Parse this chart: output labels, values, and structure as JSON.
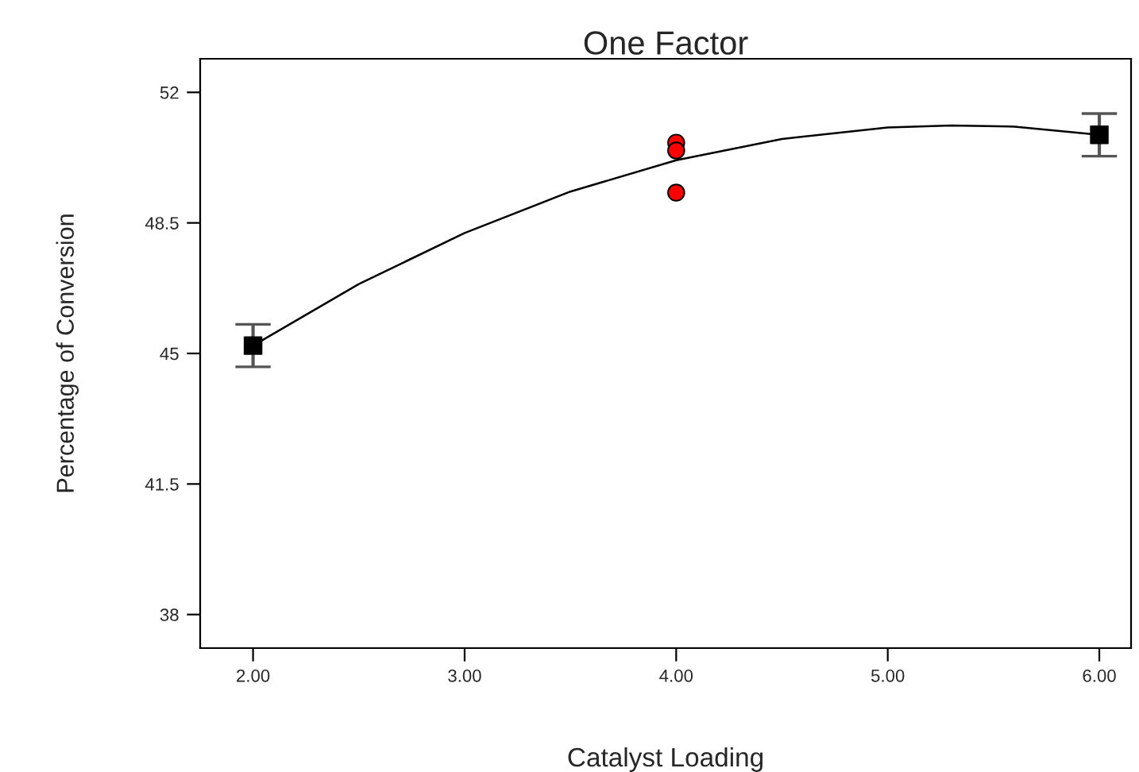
{
  "chart_data": {
    "type": "scatter",
    "title": "One Factor",
    "xlabel": "Catalyst Loading",
    "ylabel": "Percentage of Conversion",
    "xlim": [
      1.75,
      6.15
    ],
    "ylim": [
      37.1,
      52.9
    ],
    "xticks": [
      {
        "value": 2,
        "label": "2.00"
      },
      {
        "value": 3,
        "label": "3.00"
      },
      {
        "value": 4,
        "label": "4.00"
      },
      {
        "value": 5,
        "label": "5.00"
      },
      {
        "value": 6,
        "label": "6.00"
      }
    ],
    "yticks": [
      38,
      41.5,
      45,
      48.5,
      52
    ],
    "grid": false,
    "legend": false,
    "series": [
      {
        "type": "line",
        "color": "#000000",
        "line_style": "solid",
        "marker": "none",
        "x": [
          2,
          2.5,
          3,
          3.5,
          4,
          4.5,
          5,
          5.3,
          5.6,
          6
        ],
        "values": [
          45.21,
          46.86,
          48.23,
          49.34,
          50.18,
          50.75,
          51.06,
          51.11,
          51.08,
          50.86
        ]
      },
      {
        "color": "#000000",
        "marker": "square",
        "x": [
          2,
          6
        ],
        "values": [
          45.21,
          50.86
        ],
        "errors": [
          0.57,
          0.57
        ]
      },
      {
        "color": "#ff0000",
        "marker": "circle",
        "x": [
          4,
          4,
          4
        ],
        "values": [
          50.65,
          50.44,
          49.31
        ]
      }
    ]
  }
}
